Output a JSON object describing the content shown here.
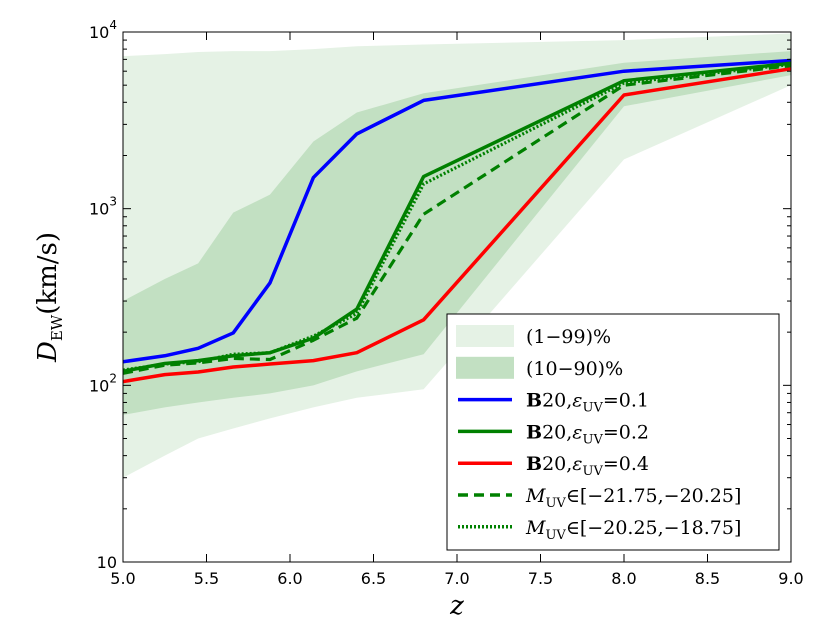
{
  "chart_data": {
    "type": "line",
    "title": "",
    "xlabel": "z",
    "ylabel": "D_EW(km/s)",
    "xlim": [
      5.0,
      9.0
    ],
    "ylim": [
      10,
      10000
    ],
    "yscale": "log",
    "x_ticks": [
      5.0,
      5.5,
      6.0,
      6.5,
      7.0,
      7.5,
      8.0,
      8.5,
      9.0
    ],
    "x_tick_labels": [
      "5.0",
      "5.5",
      "6.0",
      "6.5",
      "7.0",
      "7.5",
      "8.0",
      "8.5",
      "9.0"
    ],
    "y_ticks": [
      10,
      100,
      1000,
      10000
    ],
    "y_tick_labels": [
      {
        "base": "10",
        "exp": ""
      },
      {
        "base": "10",
        "exp": "2"
      },
      {
        "base": "10",
        "exp": "3"
      },
      {
        "base": "10",
        "exp": "4"
      }
    ],
    "bands": [
      {
        "name": "(1−99)%",
        "color": "#e5f2e5",
        "x": [
          5.0,
          5.25,
          5.45,
          5.66,
          5.88,
          6.14,
          6.4,
          6.8,
          8.0,
          9.0
        ],
        "lower": [
          30,
          40,
          50,
          57,
          65,
          75,
          85,
          95,
          1900,
          5000
        ],
        "upper": [
          7300,
          7500,
          7700,
          7800,
          7800,
          8000,
          8300,
          8500,
          9000,
          9800
        ]
      },
      {
        "name": "(10−90)%",
        "color": "#c2e0c2",
        "x": [
          5.0,
          5.25,
          5.45,
          5.66,
          5.88,
          6.14,
          6.4,
          6.8,
          8.0,
          9.0
        ],
        "lower": [
          68,
          75,
          80,
          85,
          90,
          100,
          120,
          150,
          3800,
          5700
        ],
        "upper": [
          300,
          400,
          490,
          950,
          1200,
          2400,
          3500,
          4500,
          6700,
          7800
        ]
      }
    ],
    "series": [
      {
        "name": "B20, ε_UV = 0.1",
        "color": "#0000ff",
        "style": "solid",
        "x": [
          5.0,
          5.25,
          5.45,
          5.66,
          5.88,
          6.14,
          6.4,
          6.8,
          8.0,
          9.0
        ],
        "values": [
          136,
          147,
          162,
          198,
          380,
          1500,
          2650,
          4100,
          6000,
          6900
        ]
      },
      {
        "name": "B20, ε_UV = 0.2",
        "color": "#008000",
        "style": "solid",
        "x": [
          5.0,
          5.25,
          5.45,
          5.66,
          5.88,
          6.14,
          6.4,
          6.8,
          8.0,
          9.0
        ],
        "values": [
          120,
          133,
          138,
          147,
          153,
          185,
          270,
          1520,
          5300,
          6650
        ]
      },
      {
        "name": "B20, ε_UV = 0.4",
        "color": "#ff0000",
        "style": "solid",
        "x": [
          5.0,
          5.25,
          5.45,
          5.66,
          5.88,
          6.14,
          6.4,
          6.8,
          8.0,
          9.0
        ],
        "values": [
          105,
          115,
          119,
          127,
          132,
          138,
          153,
          235,
          4400,
          6200
        ]
      },
      {
        "name": "M_UV ∈ [−21.75, −20.25]",
        "color": "#008000",
        "style": "dashed",
        "x": [
          5.0,
          5.25,
          5.45,
          5.66,
          5.88,
          6.14,
          6.4,
          6.8,
          8.0,
          9.0
        ],
        "values": [
          117,
          130,
          134,
          142,
          140,
          180,
          240,
          930,
          5000,
          6450
        ]
      },
      {
        "name": "M_UV ∈ [−20.25, −18.75]",
        "color": "#008000",
        "style": "dotted",
        "x": [
          5.0,
          5.25,
          5.45,
          5.66,
          5.88,
          6.14,
          6.4,
          6.8,
          8.0,
          9.0
        ],
        "values": [
          122,
          132,
          136,
          150,
          153,
          190,
          255,
          1380,
          5150,
          6550
        ]
      }
    ],
    "legend": {
      "placement": "lower-right",
      "entries": [
        {
          "kind": "patch",
          "color": "#e5f2e5",
          "text": "(1−99)%"
        },
        {
          "kind": "patch",
          "color": "#c2e0c2",
          "text": "(10−90)%"
        },
        {
          "kind": "line",
          "color": "#0000ff",
          "style": "solid",
          "bold": "B",
          "num": "20,",
          "sym": "ε",
          "sub": "UV",
          "val": "=0.1"
        },
        {
          "kind": "line",
          "color": "#008000",
          "style": "solid",
          "bold": "B",
          "num": "20,",
          "sym": "ε",
          "sub": "UV",
          "val": "=0.2"
        },
        {
          "kind": "line",
          "color": "#ff0000",
          "style": "solid",
          "bold": "B",
          "num": "20,",
          "sym": "ε",
          "sub": "UV",
          "val": "=0.4"
        },
        {
          "kind": "line",
          "color": "#008000",
          "style": "dashed",
          "bold": "",
          "num": "",
          "sym": "M",
          "sub": "UV",
          "val": "∈[−21.75,−20.25]"
        },
        {
          "kind": "line",
          "color": "#008000",
          "style": "dotted",
          "bold": "",
          "num": "",
          "sym": "M",
          "sub": "UV",
          "val": "∈[−20.25,−18.75]"
        }
      ]
    }
  }
}
